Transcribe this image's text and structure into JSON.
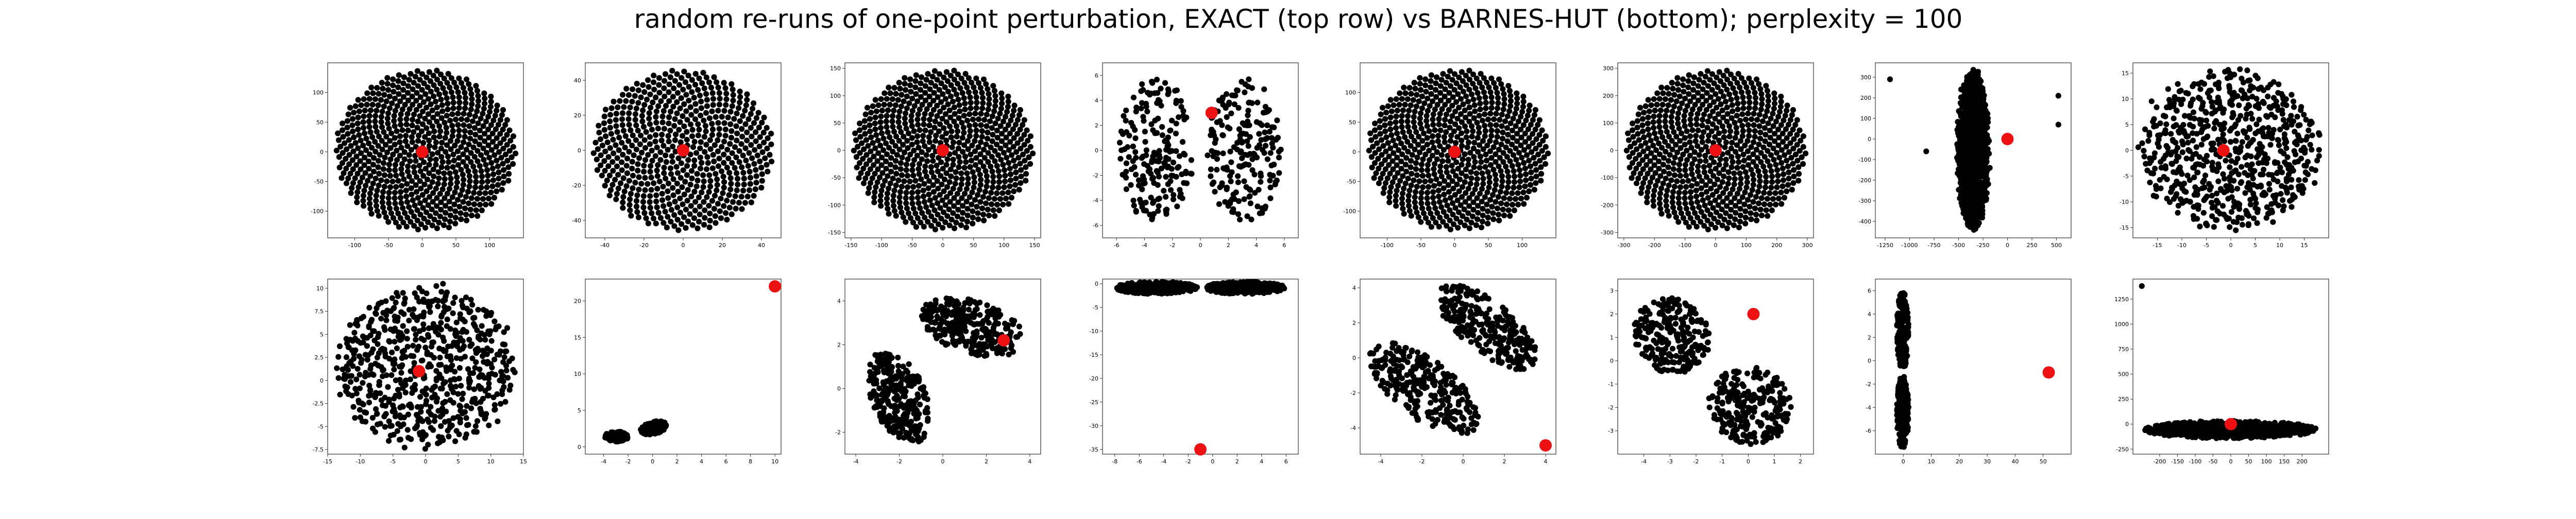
{
  "figure": {
    "title": "random re-runs of one-point perturbation, EXACT (top row) vs BARNES-HUT (bottom); perplexity = 100",
    "colors": {
      "points": "#000000",
      "highlight": "#ee1111",
      "frame": "#333333"
    }
  },
  "chart_data": [
    {
      "type": "scatter",
      "row": "top",
      "col": 1,
      "layout": "disk",
      "n": 700,
      "xlim": [
        -140,
        150
      ],
      "ylim": [
        -145,
        150
      ],
      "xticks": [
        -100,
        -50,
        0,
        50,
        100
      ],
      "yticks": [
        -100,
        -50,
        0,
        50,
        100
      ],
      "highlight": {
        "x": 0,
        "y": 0
      }
    },
    {
      "type": "scatter",
      "row": "top",
      "col": 2,
      "layout": "disk",
      "n": 600,
      "xlim": [
        -50,
        50
      ],
      "ylim": [
        -50,
        50
      ],
      "xticks": [
        -40,
        -20,
        0,
        20,
        40
      ],
      "yticks": [
        -40,
        -20,
        0,
        20,
        40
      ],
      "highlight": {
        "x": 0,
        "y": 0
      }
    },
    {
      "type": "scatter",
      "row": "top",
      "col": 3,
      "layout": "disk",
      "n": 700,
      "xlim": [
        -160,
        160
      ],
      "ylim": [
        -160,
        160
      ],
      "xticks": [
        -150,
        -100,
        -50,
        0,
        50,
        100,
        150
      ],
      "yticks": [
        -150,
        -100,
        -50,
        0,
        50,
        100,
        150
      ],
      "highlight": {
        "x": 0,
        "y": 0
      }
    },
    {
      "type": "scatter",
      "row": "top",
      "col": 4,
      "layout": "split_vertical",
      "n": 400,
      "xlim": [
        -7,
        7
      ],
      "ylim": [
        -7,
        7
      ],
      "xticks": [
        -6,
        -4,
        -2,
        0,
        2,
        4,
        6
      ],
      "yticks": [
        -6,
        -4,
        -2,
        0,
        2,
        4,
        6
      ],
      "highlight": {
        "x": 0.8,
        "y": 3.0
      }
    },
    {
      "type": "scatter",
      "row": "top",
      "col": 5,
      "layout": "disk",
      "n": 700,
      "xlim": [
        -140,
        150
      ],
      "ylim": [
        -145,
        150
      ],
      "xticks": [
        -100,
        -50,
        0,
        50,
        100
      ],
      "yticks": [
        -100,
        -50,
        0,
        50,
        100
      ],
      "highlight": {
        "x": 0,
        "y": 0
      }
    },
    {
      "type": "scatter",
      "row": "top",
      "col": 6,
      "layout": "disk",
      "n": 700,
      "xlim": [
        -320,
        320
      ],
      "ylim": [
        -320,
        320
      ],
      "xticks": [
        -300,
        -200,
        -100,
        0,
        100,
        200,
        300
      ],
      "yticks": [
        -300,
        -200,
        -100,
        0,
        100,
        200,
        300
      ],
      "highlight": {
        "x": 0,
        "y": 0
      }
    },
    {
      "type": "scatter",
      "row": "top",
      "col": 7,
      "layout": "narrow_ellipse",
      "n": 650,
      "xlim": [
        -1350,
        650
      ],
      "ylim": [
        -480,
        370
      ],
      "xticks": [
        -1250,
        -1000,
        -750,
        -500,
        -250,
        0,
        250,
        500
      ],
      "yticks": [
        -400,
        -300,
        -200,
        -100,
        0,
        100,
        200,
        300
      ],
      "outliers": [
        [
          -1200,
          290
        ],
        [
          -830,
          -60
        ],
        [
          520,
          210
        ],
        [
          520,
          70
        ]
      ],
      "highlight": {
        "x": 0,
        "y": 0
      }
    },
    {
      "type": "scatter",
      "row": "top",
      "col": 8,
      "layout": "disk_noisy",
      "n": 650,
      "xlim": [
        -20,
        20
      ],
      "ylim": [
        -17,
        17
      ],
      "xticks": [
        -15,
        -10,
        -5,
        0,
        5,
        10,
        15
      ],
      "yticks": [
        -15,
        -10,
        -5,
        0,
        5,
        10,
        15
      ],
      "highlight": {
        "x": -1.5,
        "y": 0
      }
    },
    {
      "type": "scatter",
      "row": "bottom",
      "col": 1,
      "layout": "disk_noisy",
      "n": 650,
      "xlim": [
        -15,
        15
      ],
      "ylim": [
        -8,
        11
      ],
      "xticks": [
        -15,
        -10,
        -5,
        0,
        5,
        10,
        15
      ],
      "yticks": [
        -7.5,
        -5.0,
        -2.5,
        0.0,
        2.5,
        5.0,
        7.5,
        10.0
      ],
      "highlight": {
        "x": -1,
        "y": 1
      }
    },
    {
      "type": "scatter",
      "row": "bottom",
      "col": 2,
      "layout": "two_blobs_small",
      "n": 300,
      "xlim": [
        -5.5,
        10.5
      ],
      "ylim": [
        -1,
        23
      ],
      "xticks": [
        -4,
        -2,
        0,
        2,
        4,
        6,
        8,
        10
      ],
      "yticks": [
        0,
        5,
        10,
        15,
        20
      ],
      "highlight": {
        "x": 10,
        "y": 22
      }
    },
    {
      "type": "scatter",
      "row": "bottom",
      "col": 3,
      "layout": "two_blobs_diag",
      "n": 550,
      "xlim": [
        -4.5,
        4.5
      ],
      "ylim": [
        -3,
        5
      ],
      "xticks": [
        -4,
        -2,
        0,
        2,
        4
      ],
      "yticks": [
        -2,
        0,
        2,
        4
      ],
      "highlight": {
        "x": 2.8,
        "y": 2.2
      }
    },
    {
      "type": "scatter",
      "row": "bottom",
      "col": 4,
      "layout": "two_bands_top",
      "n": 650,
      "xlim": [
        -9,
        7
      ],
      "ylim": [
        -36,
        1
      ],
      "xticks": [
        -8,
        -6,
        -4,
        -2,
        0,
        2,
        4,
        6
      ],
      "yticks": [
        -35,
        -30,
        -25,
        -20,
        -15,
        -10,
        -5,
        0
      ],
      "highlight": {
        "x": -1,
        "y": -35
      }
    },
    {
      "type": "scatter",
      "row": "bottom",
      "col": 5,
      "layout": "two_blobs_parallel",
      "n": 550,
      "xlim": [
        -5,
        4.5
      ],
      "ylim": [
        -5.5,
        4.5
      ],
      "xticks": [
        -4,
        -2,
        0,
        2,
        4
      ],
      "yticks": [
        -4,
        -2,
        0,
        2,
        4
      ],
      "highlight": {
        "x": 4,
        "y": -5
      }
    },
    {
      "type": "scatter",
      "row": "bottom",
      "col": 6,
      "layout": "two_blobs_offdiag",
      "n": 500,
      "xlim": [
        -5,
        2.5
      ],
      "ylim": [
        -4,
        3.5
      ],
      "xticks": [
        -4,
        -3,
        -2,
        -1,
        0,
        1,
        2
      ],
      "yticks": [
        -3,
        -2,
        -1,
        0,
        1,
        2,
        3
      ],
      "highlight": {
        "x": 0.2,
        "y": 2.0
      }
    },
    {
      "type": "scatter",
      "row": "bottom",
      "col": 7,
      "layout": "two_bands_left",
      "n": 400,
      "xlim": [
        -10,
        60
      ],
      "ylim": [
        -8,
        7
      ],
      "xticks": [
        0,
        10,
        20,
        30,
        40,
        50
      ],
      "yticks": [
        -6,
        -4,
        -2,
        0,
        2,
        4,
        6
      ],
      "highlight": {
        "x": 52,
        "y": -1
      }
    },
    {
      "type": "scatter",
      "row": "bottom",
      "col": 8,
      "layout": "wide_band",
      "n": 650,
      "xlim": [
        -275,
        275
      ],
      "ylim": [
        -300,
        1450
      ],
      "xticks": [
        -200,
        -150,
        -100,
        -50,
        0,
        50,
        100,
        150,
        200
      ],
      "yticks": [
        -250,
        0,
        250,
        500,
        750,
        1000,
        1250
      ],
      "outliers": [
        [
          -250,
          1380
        ]
      ],
      "highlight": {
        "x": 0,
        "y": 0
      }
    }
  ]
}
